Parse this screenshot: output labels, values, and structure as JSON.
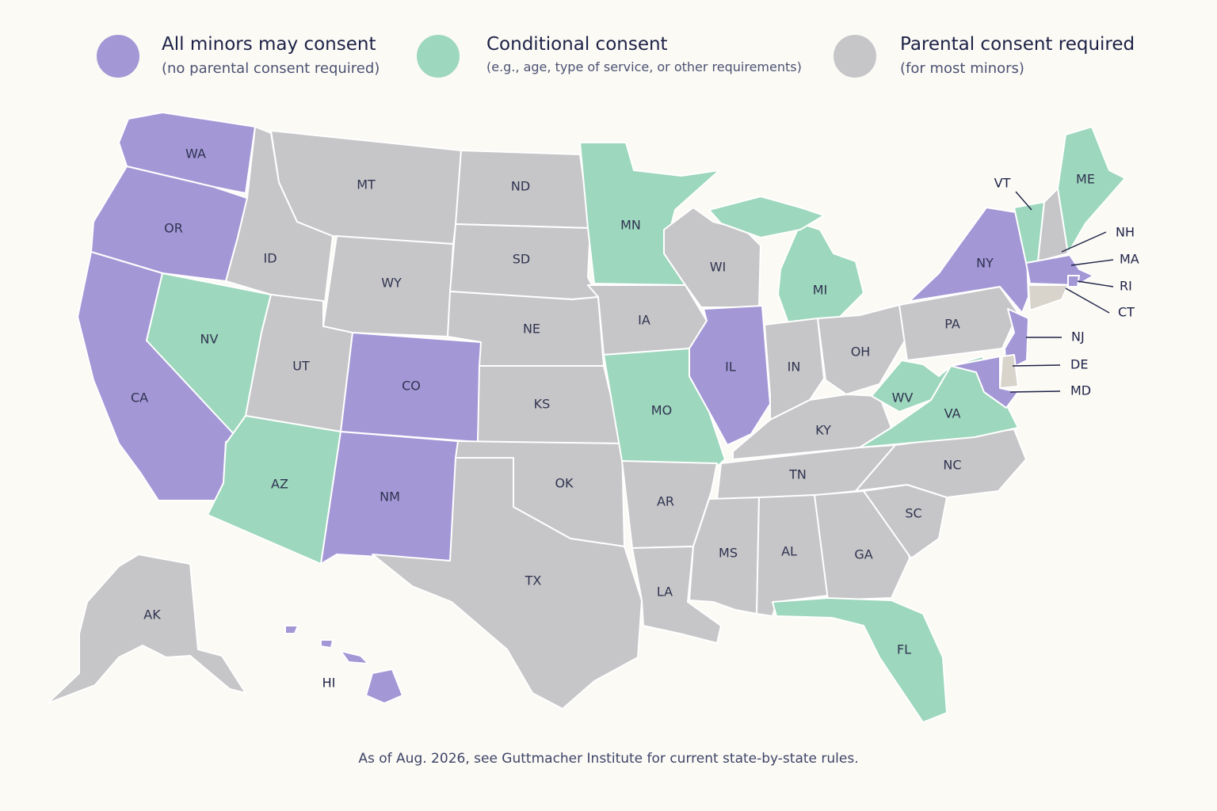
{
  "colors": {
    "all_minors": "#a397d6",
    "conditional": "#9dd7bd",
    "parental": "#c6c6c8",
    "light": "#d8d3cb"
  },
  "legend": [
    {
      "key": "all_minors",
      "title": "All minors may consent",
      "subtitle": "(no parental consent required)"
    },
    {
      "key": "conditional",
      "title": "Conditional consent",
      "subtitle": "(e.g., age, type of service, or other requirements)"
    },
    {
      "key": "parental",
      "title": "Parental consent required",
      "subtitle": "(for most minors)"
    }
  ],
  "states": {
    "WA": "all_minors",
    "OR": "all_minors",
    "CA": "all_minors",
    "CO": "all_minors",
    "NM": "all_minors",
    "IL": "all_minors",
    "NY": "all_minors",
    "NJ": "all_minors",
    "MD": "all_minors",
    "MA": "all_minors",
    "RI": "all_minors",
    "HI": "all_minors",
    "NV": "conditional",
    "AZ": "conditional",
    "MN": "conditional",
    "MO": "conditional",
    "MI": "conditional",
    "WV": "conditional",
    "VA": "conditional",
    "FL": "conditional",
    "ME": "conditional",
    "VT": "conditional",
    "ID": "parental",
    "MT": "parental",
    "WY": "parental",
    "UT": "parental",
    "ND": "parental",
    "SD": "parental",
    "NE": "parental",
    "KS": "parental",
    "OK": "parental",
    "TX": "parental",
    "IA": "parental",
    "AR": "parental",
    "LA": "parental",
    "WI": "parental",
    "IN": "parental",
    "OH": "parental",
    "KY": "parental",
    "TN": "parental",
    "MS": "parental",
    "AL": "parental",
    "GA": "parental",
    "SC": "parental",
    "NC": "parental",
    "PA": "parental",
    "NH": "parental",
    "AK": "parental",
    "CT": "light",
    "DE": "light"
  },
  "callouts": [
    "VT",
    "NH",
    "MA",
    "RI",
    "CT",
    "NJ",
    "DE",
    "MD"
  ],
  "footnote": "As of Aug. 2026, see Guttmacher Institute for current state-by-state rules."
}
